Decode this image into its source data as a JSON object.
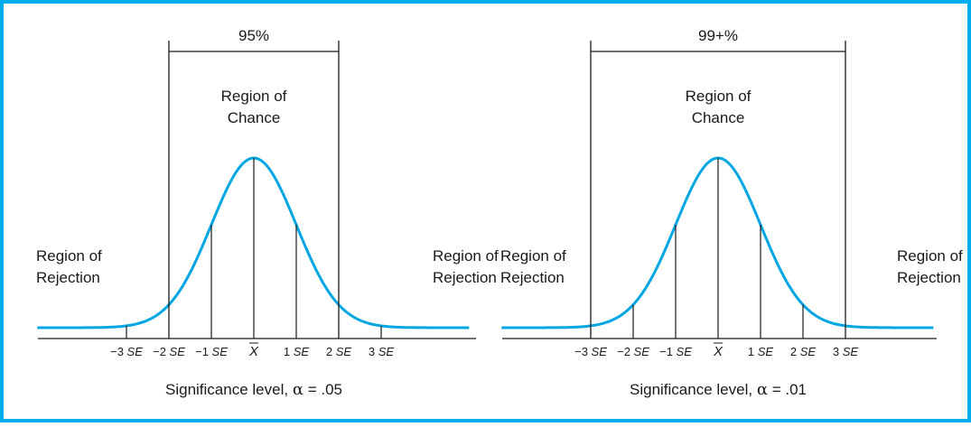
{
  "colors": {
    "frame": "#00aeef",
    "curve": "#00a6e2",
    "ink": "#1a1a1a"
  },
  "panels": [
    {
      "bracket_label": "95%",
      "chance_label_line1": "Region of",
      "chance_label_line2": "Chance",
      "left_rejection_line1": "Region of",
      "left_rejection_line2": "Rejection",
      "right_rejection_line1": "Region of",
      "right_rejection_line2": "Rejection",
      "caption_prefix": "Significance level, ",
      "caption_alpha": "α",
      "caption_value": " = .05",
      "boundary_se": 2,
      "ticks": [
        {
          "z": -3,
          "num": "−3",
          "unit": "SE"
        },
        {
          "z": -2,
          "num": "−2",
          "unit": "SE"
        },
        {
          "z": -1,
          "num": "−1",
          "unit": "SE"
        },
        {
          "z": 0,
          "num": "X",
          "unit": "",
          "bar": true
        },
        {
          "z": 1,
          "num": "1",
          "unit": "SE"
        },
        {
          "z": 2,
          "num": "2",
          "unit": "SE"
        },
        {
          "z": 3,
          "num": "3",
          "unit": "SE"
        }
      ]
    },
    {
      "bracket_label": "99+%",
      "chance_label_line1": "Region of",
      "chance_label_line2": "Chance",
      "left_rejection_line1": "Region of",
      "left_rejection_line2": "Rejection",
      "right_rejection_line1": "Region of",
      "right_rejection_line2": "Rejection",
      "caption_prefix": "Significance level, ",
      "caption_alpha": "α",
      "caption_value": " = .01",
      "boundary_se": 3,
      "ticks": [
        {
          "z": -3,
          "num": "−3",
          "unit": "SE"
        },
        {
          "z": -2,
          "num": "−2",
          "unit": "SE"
        },
        {
          "z": -1,
          "num": "−1",
          "unit": "SE"
        },
        {
          "z": 0,
          "num": "X",
          "unit": "",
          "bar": true
        },
        {
          "z": 1,
          "num": "1",
          "unit": "SE"
        },
        {
          "z": 2,
          "num": "2",
          "unit": "SE"
        },
        {
          "z": 3,
          "num": "3",
          "unit": "SE"
        }
      ]
    }
  ]
}
